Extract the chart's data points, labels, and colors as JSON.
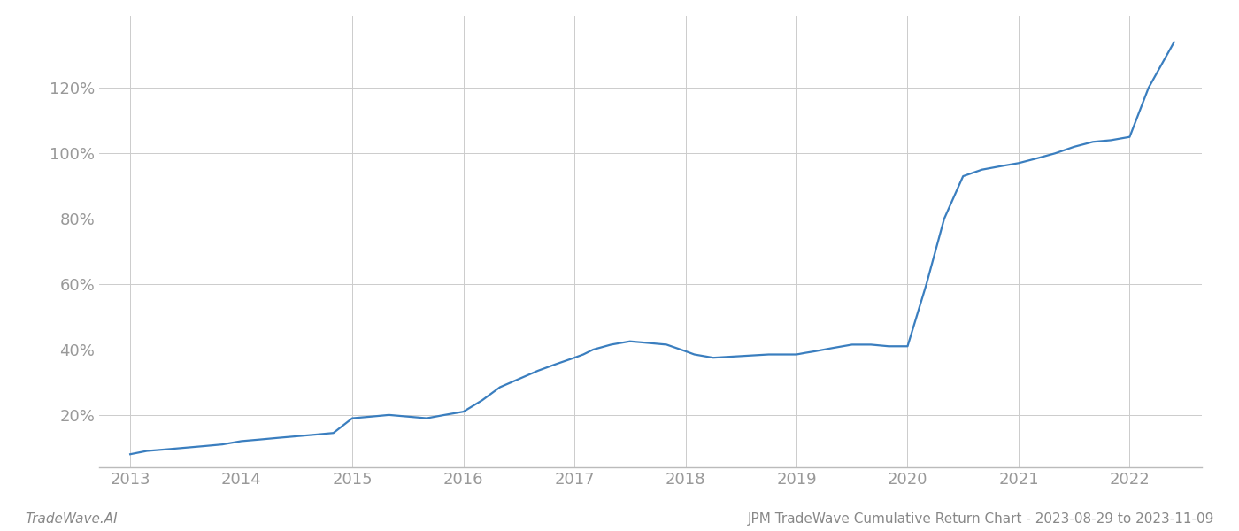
{
  "title": "JPM TradeWave Cumulative Return Chart - 2023-08-29 to 2023-11-09",
  "watermark": "TradeWave.AI",
  "line_color": "#3a7ebf",
  "background_color": "#ffffff",
  "grid_color": "#cccccc",
  "x_years": [
    2013,
    2014,
    2015,
    2016,
    2017,
    2018,
    2019,
    2020,
    2021,
    2022
  ],
  "data_x": [
    2013.0,
    2013.15,
    2013.33,
    2013.5,
    2013.67,
    2013.83,
    2014.0,
    2014.17,
    2014.33,
    2014.5,
    2014.67,
    2014.83,
    2015.0,
    2015.17,
    2015.33,
    2015.5,
    2015.67,
    2015.83,
    2016.0,
    2016.17,
    2016.33,
    2016.5,
    2016.67,
    2016.83,
    2017.0,
    2017.08,
    2017.17,
    2017.33,
    2017.5,
    2017.67,
    2017.83,
    2018.0,
    2018.08,
    2018.25,
    2018.5,
    2018.75,
    2019.0,
    2019.08,
    2019.17,
    2019.33,
    2019.5,
    2019.67,
    2019.83,
    2020.0,
    2020.17,
    2020.33,
    2020.5,
    2020.67,
    2020.83,
    2021.0,
    2021.17,
    2021.33,
    2021.5,
    2021.67,
    2021.83,
    2022.0,
    2022.17,
    2022.4
  ],
  "data_y": [
    0.08,
    0.09,
    0.095,
    0.1,
    0.105,
    0.11,
    0.12,
    0.125,
    0.13,
    0.135,
    0.14,
    0.145,
    0.19,
    0.195,
    0.2,
    0.195,
    0.19,
    0.2,
    0.21,
    0.245,
    0.285,
    0.31,
    0.335,
    0.355,
    0.375,
    0.385,
    0.4,
    0.415,
    0.425,
    0.42,
    0.415,
    0.395,
    0.385,
    0.375,
    0.38,
    0.385,
    0.385,
    0.39,
    0.395,
    0.405,
    0.415,
    0.415,
    0.41,
    0.41,
    0.6,
    0.8,
    0.93,
    0.95,
    0.96,
    0.97,
    0.985,
    1.0,
    1.02,
    1.035,
    1.04,
    1.05,
    1.2,
    1.34
  ],
  "ylim": [
    0.04,
    1.42
  ],
  "yticks": [
    0.2,
    0.4,
    0.6,
    0.8,
    1.0,
    1.2
  ],
  "ytick_labels": [
    "20%",
    "40%",
    "60%",
    "80%",
    "100%",
    "120%"
  ],
  "xlim_left": 2012.72,
  "xlim_right": 2022.65,
  "line_width": 1.6,
  "footer_left_color": "#888888",
  "footer_right_color": "#888888",
  "tick_color": "#999999",
  "tick_fontsize": 13,
  "footer_fontsize": 11
}
